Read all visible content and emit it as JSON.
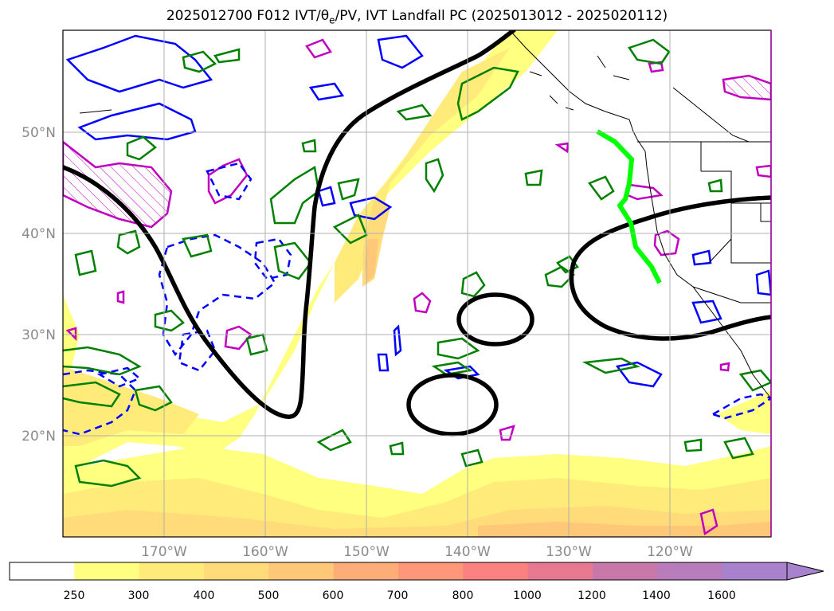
{
  "title": "2025012700 F012 IVT/θe/PV, IVT Landfall PC (2025013012 - 2025020112)",
  "title_parts": {
    "pre": "2025012700 F012 IVT/",
    "theta": "θ",
    "sub": "e",
    "post": "/PV, IVT Landfall PC (2025013012 - 2025020112)"
  },
  "map": {
    "lon_labels": [
      "170°W",
      "160°W",
      "150°W",
      "140°W",
      "130°W",
      "120°W"
    ],
    "lat_labels": [
      "50°N",
      "40°N",
      "30°N",
      "20°N"
    ],
    "grid": true,
    "colors": {
      "coast": "#000000",
      "contour_black": "#000000",
      "pv_blue": "#0000ff",
      "theta_green": "#008000",
      "pv_magenta": "#c000c0",
      "landfall_pc": "#00ff00"
    }
  },
  "colorbar": {
    "ticks": [
      "250",
      "300",
      "400",
      "500",
      "600",
      "700",
      "800",
      "1000",
      "1200",
      "1400",
      "1600"
    ],
    "colors": [
      "#ffffff",
      "#ffff80",
      "#ffeb7a",
      "#ffdb7a",
      "#ffc878",
      "#ffad78",
      "#ff9778",
      "#fb8080",
      "#e67890",
      "#c878a8",
      "#b87cbc",
      "#a882cc"
    ],
    "extend": "max"
  }
}
